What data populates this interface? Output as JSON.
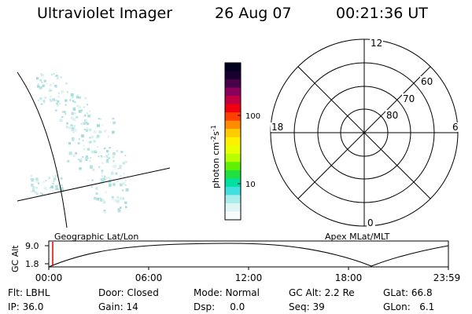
{
  "header": {
    "title": "Ultraviolet Imager",
    "date": "26 Aug 07",
    "time": "00:21:36 UT"
  },
  "colorbar": {
    "label": "photon cm",
    "exp1": "-2",
    "unit2": "s",
    "exp2": "-1",
    "ticks": [
      "100",
      "10"
    ],
    "colors": [
      "#000020",
      "#1a0030",
      "#4a0048",
      "#8a005a",
      "#c00040",
      "#f00010",
      "#ff4000",
      "#ff8c00",
      "#ffcc00",
      "#fff000",
      "#e8ff00",
      "#b8ff00",
      "#60f000",
      "#20e040",
      "#00e0a0",
      "#40e0e0",
      "#a8ecec",
      "#e0f4f4",
      "#f6fbfb"
    ]
  },
  "polar": {
    "mlt_labels": {
      "top": "12",
      "bottom": "0",
      "left": "18",
      "right": "6"
    },
    "lat_labels": [
      "60",
      "70",
      "80"
    ]
  },
  "altitude_plot": {
    "ylabel": "GC Alt",
    "yticks": [
      "9.0",
      "1.8"
    ],
    "left_title": "Geographic Lat/Lon",
    "right_title": "Apex  MLat/MLT",
    "xticks": [
      "00:00",
      "06:00",
      "12:00",
      "18:00",
      "23:59"
    ],
    "marker_color": "#dd0000"
  },
  "status": {
    "flt": "Flt: LBHL",
    "door": "Door: Closed",
    "mode": "Mode: Normal",
    "gc_alt": "GC Alt: 2.2 Re",
    "glat": "GLat:  66.8",
    "ip": "IP: 36.0",
    "gain": "Gain: 14",
    "dsp": "Dsp:     0.0",
    "seq": "Seq: 39",
    "glon": "GLon:   6.1"
  }
}
